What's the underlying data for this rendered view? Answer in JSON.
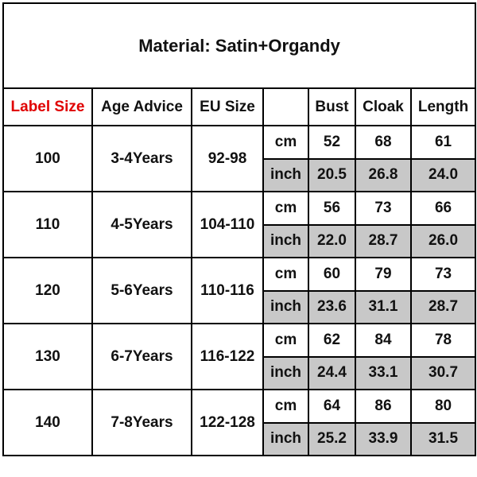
{
  "title": "Material: Satin+Organdy",
  "header": [
    "Label Size",
    "Age Advice",
    "EU Size",
    "Bust",
    "Cloak",
    "Length"
  ],
  "rows": [
    {
      "label_size": "100",
      "age": "3-4Years",
      "eu": "92-98",
      "cm": {
        "unit": "cm",
        "values": [
          "52",
          "68",
          "61"
        ]
      },
      "inch": {
        "unit": "inch",
        "values": [
          "20.5",
          "26.8",
          "24.0"
        ]
      }
    },
    {
      "label_size": "110",
      "age": "4-5Years",
      "eu": "104-110",
      "cm": {
        "unit": "cm",
        "values": [
          "56",
          "73",
          "66"
        ]
      },
      "inch": {
        "unit": "inch",
        "values": [
          "22.0",
          "28.7",
          "26.0"
        ]
      }
    },
    {
      "label_size": "120",
      "age": "5-6Years",
      "eu": "110-116",
      "cm": {
        "unit": "cm",
        "values": [
          "60",
          "79",
          "73"
        ]
      },
      "inch": {
        "unit": "inch",
        "values": [
          "23.6",
          "31.1",
          "28.7"
        ]
      }
    },
    {
      "label_size": "130",
      "age": "6-7Years",
      "eu": "116-122",
      "cm": {
        "unit": "cm",
        "values": [
          "62",
          "84",
          "78"
        ]
      },
      "inch": {
        "unit": "inch",
        "values": [
          "24.4",
          "33.1",
          "30.7"
        ]
      }
    },
    {
      "label_size": "140",
      "age": "7-8Years",
      "eu": "122-128",
      "cm": {
        "unit": "cm",
        "values": [
          "64",
          "86",
          "80"
        ]
      },
      "inch": {
        "unit": "inch",
        "values": [
          "25.2",
          "33.9",
          "31.5"
        ]
      }
    }
  ]
}
